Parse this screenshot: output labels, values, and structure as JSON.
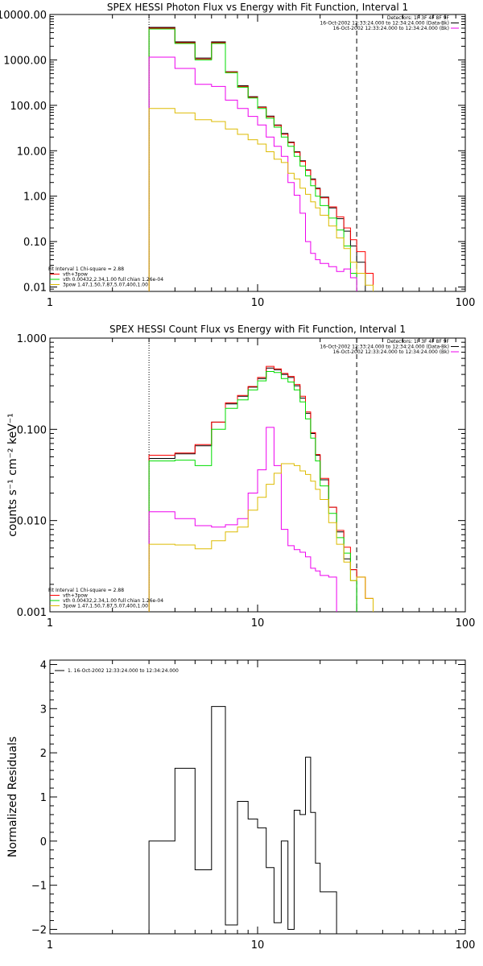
{
  "chart_data": [
    {
      "type": "line",
      "title": "SPEX HESSI Photon Flux vs Energy with Fit Function, Interval 1",
      "ylabel": "",
      "xscale": "log",
      "yscale": "log",
      "xlim": [
        1,
        100
      ],
      "ylim": [
        0.008,
        10000
      ],
      "xticks": [
        "1",
        "10",
        "100"
      ],
      "yticks": [
        {
          "v": 10000,
          "label": "10000.00"
        },
        {
          "v": 1000,
          "label": "1000.00"
        },
        {
          "v": 100,
          "label": "100.00"
        },
        {
          "v": 10,
          "label": "10.00"
        },
        {
          "v": 1,
          "label": "1.00"
        },
        {
          "v": 0.1,
          "label": "0.10"
        },
        {
          "v": 0.01,
          "label": "0.01"
        }
      ],
      "header": [
        "Detectors: 1F 3F 4F 8F 9F",
        "16-Oct-2002 12:33:24.000 to 12:34:24.000 (Data-Bk)",
        "16-Oct-2002 12:33:24.000 to 12:34:24.000 (Bk)"
      ],
      "legend": [
        "Fit Interval 1   Chi-square = 2.88",
        "vth+3pow",
        "vth 0.00432,2.34,1.00  full chian 1.26e-04",
        "3pow 1.47,1.50,7.87,5.07,400,1.00"
      ],
      "edges": [
        3,
        4,
        5,
        6,
        7,
        8,
        9,
        10,
        11,
        12,
        13,
        14,
        15,
        16,
        17,
        18,
        19,
        20,
        22,
        24,
        26,
        28,
        30,
        33,
        36
      ],
      "series": [
        {
          "color": "#000000",
          "values": [
            5200,
            2500,
            1100,
            2500,
            550,
            270,
            155,
            92,
            58,
            37,
            24,
            15.5,
            9.5,
            6,
            3.8,
            2.4,
            1.5,
            0.95,
            0.55,
            0.32,
            0.17,
            0.08,
            0.035,
            null
          ]
        },
        {
          "color": "#ff0000",
          "values": [
            5000,
            2400,
            1050,
            2400,
            540,
            260,
            150,
            90,
            56,
            36,
            23,
            15,
            9.2,
            5.8,
            3.7,
            2.3,
            1.45,
            0.92,
            0.58,
            0.35,
            0.2,
            0.11,
            0.06,
            0.02
          ]
        },
        {
          "color": "#00dd00",
          "values": [
            4800,
            2300,
            1000,
            2300,
            520,
            250,
            145,
            85,
            52,
            33,
            20,
            12.5,
            7.5,
            4.6,
            2.8,
            1.7,
            1.0,
            0.62,
            0.33,
            0.18,
            0.08,
            0.02,
            null,
            null
          ]
        },
        {
          "color": "#ee00ee",
          "values": [
            1150,
            650,
            290,
            260,
            130,
            85,
            57,
            37,
            20,
            12.5,
            7.5,
            2.0,
            1.05,
            0.42,
            0.1,
            0.055,
            0.04,
            0.033,
            0.028,
            0.022,
            0.025,
            0.016,
            null,
            null
          ]
        },
        {
          "color": "#ddbb00",
          "values": [
            85,
            68,
            48,
            44,
            30,
            23,
            17.5,
            14,
            9.5,
            6.5,
            5.5,
            3.2,
            2.4,
            1.5,
            1.1,
            0.75,
            0.55,
            0.38,
            0.22,
            0.12,
            0.07,
            0.035,
            0.02,
            0.011
          ]
        }
      ]
    },
    {
      "type": "line",
      "title": "SPEX HESSI Count Flux vs Energy with Fit Function, Interval 1",
      "ylabel": "counts s⁻¹ cm⁻² keV⁻¹",
      "xscale": "log",
      "yscale": "log",
      "xlim": [
        1,
        100
      ],
      "ylim": [
        0.001,
        1.0
      ],
      "xticks": [
        "1",
        "10",
        "100"
      ],
      "yticks": [
        {
          "v": 1,
          "label": "1.000"
        },
        {
          "v": 0.1,
          "label": "0.100"
        },
        {
          "v": 0.01,
          "label": "0.010"
        },
        {
          "v": 0.001,
          "label": "0.001"
        }
      ],
      "header": [
        "Detectors: 1F 3F 4F 8F 9F",
        "16-Oct-2002 12:33:24.000 to 12:34:24.000 (Data-Bk)",
        "16-Oct-2002 12:33:24.000 to 12:34:24.000 (Bk)"
      ],
      "legend": [
        "Fit Interval 1   Chi-square = 2.88",
        "vth+3pow",
        "vth 0.00432,2.34,1.00  full chian 1.26e-04",
        "3pow 1.47,1.50,7.87,5.07,400,1.00"
      ],
      "edges": [
        3,
        4,
        5,
        6,
        7,
        8,
        9,
        10,
        11,
        12,
        13,
        14,
        15,
        16,
        17,
        18,
        19,
        20,
        22,
        24,
        26,
        28,
        30,
        33,
        36
      ],
      "series": [
        {
          "color": "#000000",
          "values": [
            0.048,
            0.054,
            0.066,
            0.12,
            0.19,
            0.23,
            0.29,
            0.36,
            0.47,
            0.45,
            0.4,
            0.37,
            0.3,
            0.22,
            0.15,
            0.09,
            0.052,
            0.028,
            0.014,
            0.0075,
            0.0038,
            0.0029,
            null,
            null
          ]
        },
        {
          "color": "#ff0000",
          "values": [
            0.052,
            0.055,
            0.068,
            0.12,
            0.195,
            0.235,
            0.295,
            0.37,
            0.49,
            0.46,
            0.41,
            0.38,
            0.31,
            0.23,
            0.155,
            0.092,
            0.053,
            0.029,
            0.014,
            0.0078,
            0.0051,
            0.0029,
            0.0024,
            0.0014
          ]
        },
        {
          "color": "#00dd00",
          "values": [
            0.045,
            0.046,
            0.04,
            0.1,
            0.17,
            0.21,
            0.27,
            0.34,
            0.43,
            0.42,
            0.36,
            0.33,
            0.27,
            0.2,
            0.13,
            0.08,
            0.045,
            0.024,
            0.012,
            0.0065,
            0.0044,
            0.0022,
            null,
            null
          ]
        },
        {
          "color": "#ee00ee",
          "values": [
            0.0125,
            0.0105,
            0.0088,
            0.0085,
            0.009,
            0.0105,
            0.02,
            0.036,
            0.105,
            0.04,
            0.008,
            0.0053,
            0.0048,
            0.0045,
            0.004,
            0.003,
            0.0028,
            0.0025,
            0.0024,
            null,
            null,
            null,
            null,
            null
          ]
        },
        {
          "color": "#ddbb00",
          "values": [
            0.0055,
            0.0054,
            0.0049,
            0.006,
            0.0075,
            0.0085,
            0.013,
            0.018,
            0.025,
            0.033,
            0.042,
            0.042,
            0.04,
            0.035,
            0.032,
            0.027,
            0.022,
            0.017,
            0.0095,
            0.0055,
            0.0035,
            0.0022,
            0.0024,
            0.0014
          ]
        }
      ]
    },
    {
      "type": "line",
      "title": "",
      "ylabel": "Normalized Residuals",
      "xscale": "log",
      "yscale": "linear",
      "xlim": [
        1,
        100
      ],
      "ylim": [
        -2.1,
        4.1
      ],
      "xticks": [
        "1",
        "10",
        "100"
      ],
      "yticks": [
        {
          "v": 4,
          "label": "4"
        },
        {
          "v": 3,
          "label": "3"
        },
        {
          "v": 2,
          "label": "2"
        },
        {
          "v": 1,
          "label": "1"
        },
        {
          "v": 0,
          "label": "0"
        },
        {
          "v": -1,
          "label": "−1"
        },
        {
          "v": -2,
          "label": "−2"
        }
      ],
      "legend": [
        "1. 16-Oct-2002 12:33:24.000 to 12:34:24.000"
      ],
      "edges": [
        3,
        4,
        5,
        6,
        7,
        8,
        9,
        10,
        11,
        12,
        13,
        14,
        15,
        16,
        17,
        18,
        19,
        20,
        22,
        24,
        26,
        28,
        30
      ],
      "series": [
        {
          "color": "#000000",
          "values": [
            0.0,
            1.65,
            -0.65,
            3.05,
            -1.9,
            0.9,
            0.5,
            0.3,
            -0.6,
            -1.85,
            0.0,
            -2.0,
            0.7,
            0.6,
            1.9,
            0.65,
            -0.5,
            -1.15,
            -1.15,
            -2.1,
            -2.1,
            -2.1
          ]
        }
      ]
    }
  ]
}
